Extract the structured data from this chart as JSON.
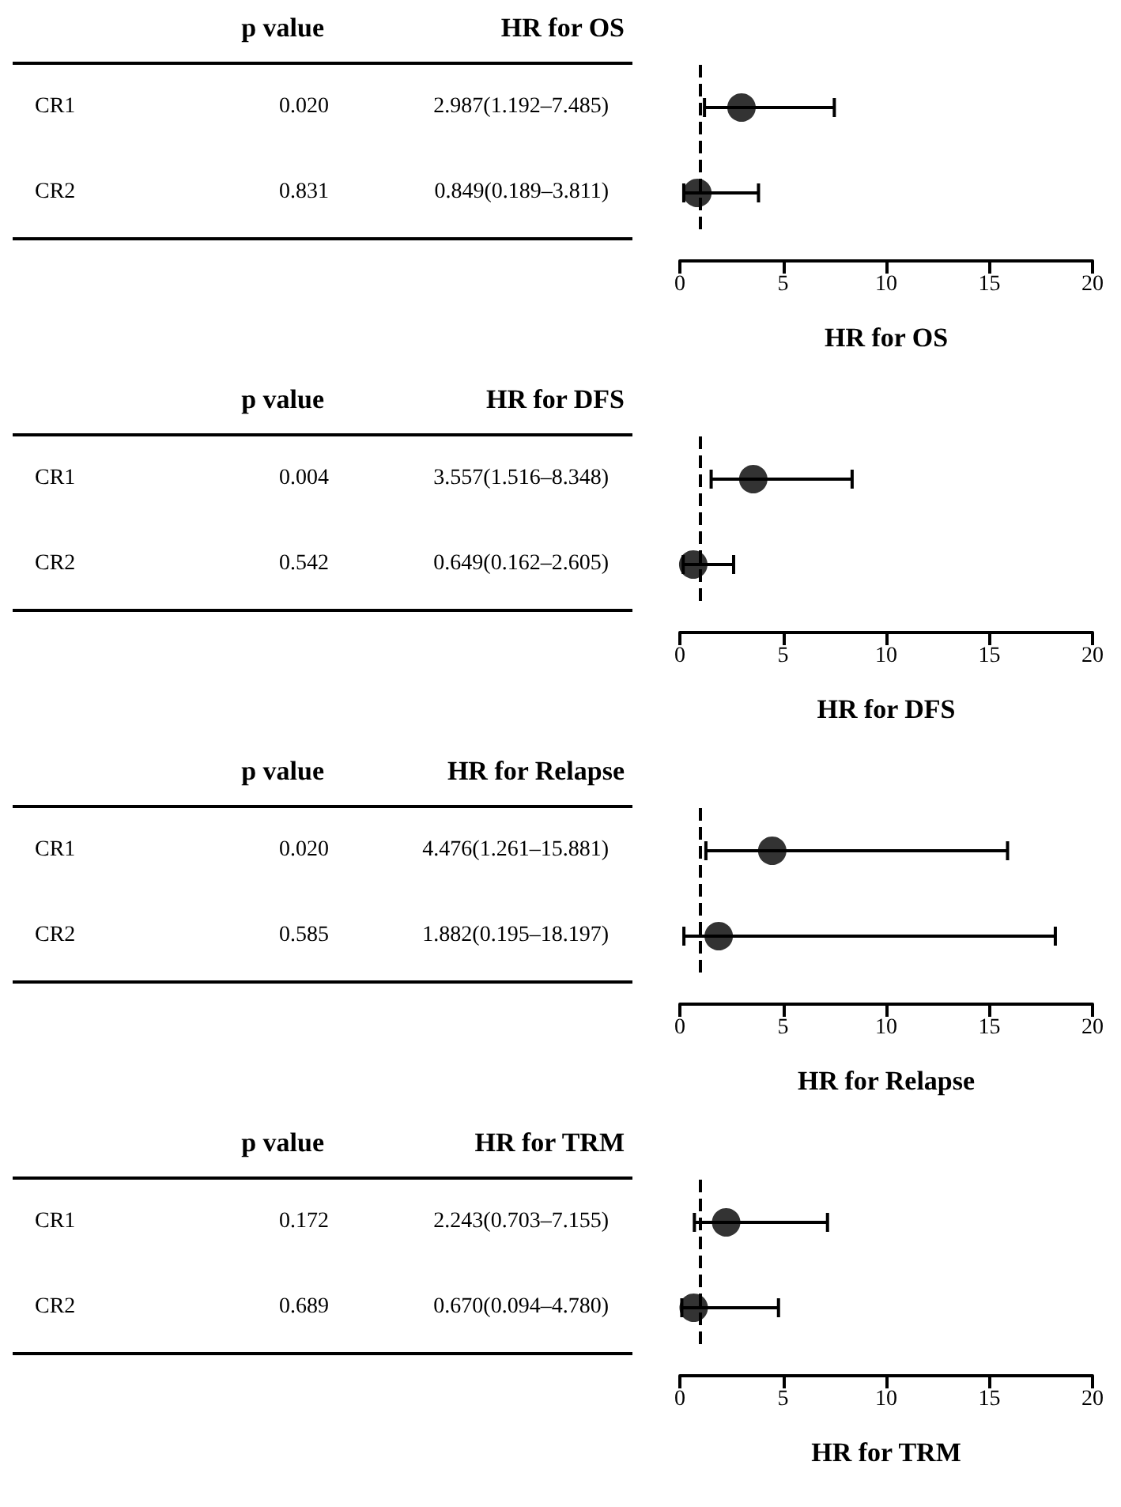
{
  "chart_data": [
    {
      "type": "scatter",
      "orientation": "horizontal",
      "categories": [
        "CR1",
        "CR2"
      ],
      "values": [
        2.987,
        0.849
      ],
      "errors": [
        [
          1.192,
          7.485
        ],
        [
          0.189,
          3.811
        ]
      ],
      "colors": [
        "#000000",
        "#000000"
      ],
      "marker": "circle",
      "xlim": [
        0,
        20
      ],
      "xticks": [
        0,
        5,
        10,
        15,
        20
      ],
      "xlabel": "HR for OS",
      "tick_labels": "x",
      "value_labels": [
        "2.987(1.192–7.485)",
        "0.849(0.189–3.811)"
      ],
      "annotations": [
        "p value",
        "HR for OS",
        "0.020",
        "0.831"
      ],
      "ref_lines": [
        {
          "axis": "x",
          "value": 1,
          "line_style": "dashed",
          "color": "#000000"
        }
      ]
    },
    {
      "type": "scatter",
      "orientation": "horizontal",
      "categories": [
        "CR1",
        "CR2"
      ],
      "values": [
        3.557,
        0.649
      ],
      "errors": [
        [
          1.516,
          8.348
        ],
        [
          0.162,
          2.605
        ]
      ],
      "colors": [
        "#000000",
        "#000000"
      ],
      "marker": "circle",
      "xlim": [
        0,
        20
      ],
      "xticks": [
        0,
        5,
        10,
        15,
        20
      ],
      "xlabel": "HR for DFS",
      "tick_labels": "x",
      "value_labels": [
        "3.557(1.516–8.348)",
        "0.649(0.162–2.605)"
      ],
      "annotations": [
        "p value",
        "HR for DFS",
        "0.004",
        "0.542"
      ],
      "ref_lines": [
        {
          "axis": "x",
          "value": 1,
          "line_style": "dashed",
          "color": "#000000"
        }
      ]
    },
    {
      "type": "scatter",
      "orientation": "horizontal",
      "categories": [
        "CR1",
        "CR2"
      ],
      "values": [
        4.476,
        1.882
      ],
      "errors": [
        [
          1.261,
          15.881
        ],
        [
          0.195,
          18.197
        ]
      ],
      "colors": [
        "#000000",
        "#000000"
      ],
      "marker": "circle",
      "xlim": [
        0,
        20
      ],
      "xticks": [
        0,
        5,
        10,
        15,
        20
      ],
      "xlabel": "HR for Relapse",
      "tick_labels": "x",
      "value_labels": [
        "4.476(1.261–15.881)",
        "1.882(0.195–18.197)"
      ],
      "annotations": [
        "p value",
        "HR for Relapse",
        "0.020",
        "0.585"
      ],
      "ref_lines": [
        {
          "axis": "x",
          "value": 1,
          "line_style": "dashed",
          "color": "#000000"
        }
      ]
    },
    {
      "type": "scatter",
      "orientation": "horizontal",
      "categories": [
        "CR1",
        "CR2"
      ],
      "values": [
        2.243,
        0.67
      ],
      "errors": [
        [
          0.703,
          7.155
        ],
        [
          0.094,
          4.78
        ]
      ],
      "colors": [
        "#000000",
        "#000000"
      ],
      "marker": "circle",
      "xlim": [
        0,
        20
      ],
      "xticks": [
        0,
        5,
        10,
        15,
        20
      ],
      "xlabel": "HR for TRM",
      "tick_labels": "x",
      "value_labels": [
        "2.243(0.703–7.155)",
        "0.670(0.094–4.780)"
      ],
      "annotations": [
        "p value",
        "HR for TRM",
        "0.172",
        "0.689"
      ],
      "ref_lines": [
        {
          "axis": "x",
          "value": 1,
          "line_style": "dashed",
          "color": "#000000"
        }
      ]
    }
  ]
}
